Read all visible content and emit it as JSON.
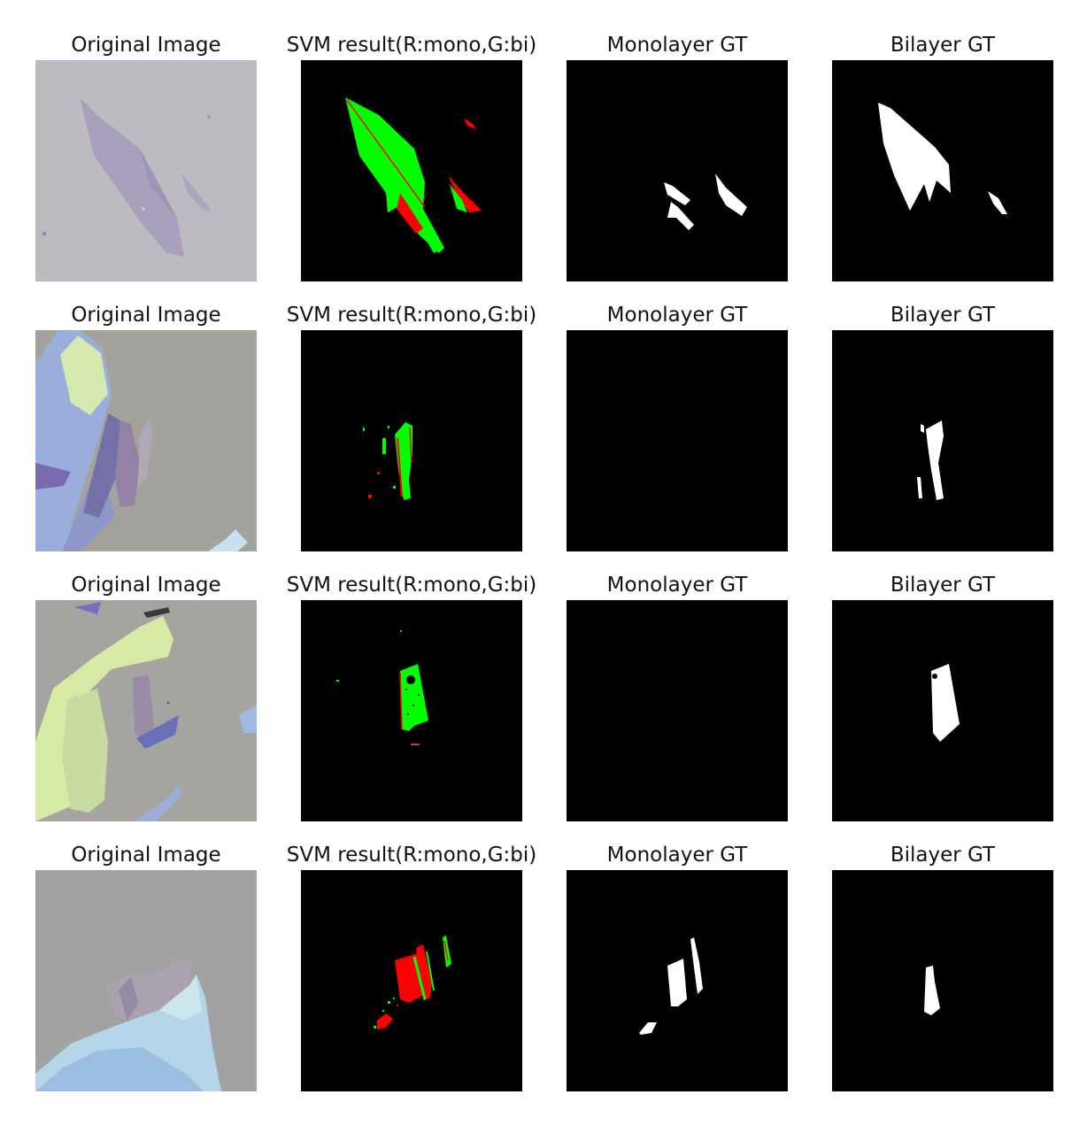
{
  "rows": [
    {
      "original_title": "Original Image",
      "svm_title": "SVM result(R:mono,G:bi)",
      "mono_title": "Monolayer GT",
      "bi_title": "Bilayer GT"
    },
    {
      "original_title": "Original Image",
      "svm_title": "SVM result(R:mono,G:bi)",
      "mono_title": "Monolayer GT",
      "bi_title": "Bilayer GT"
    },
    {
      "original_title": "Original Image",
      "svm_title": "SVM result(R:mono,G:bi)",
      "mono_title": "Monolayer GT",
      "bi_title": "Bilayer GT"
    },
    {
      "original_title": "Original Image",
      "svm_title": "SVM result(R:mono,G:bi)",
      "mono_title": "Monolayer GT",
      "bi_title": "Bilayer GT"
    }
  ],
  "colors": {
    "mono": "#ff0000",
    "bi": "#00ff00",
    "mask": "#ffffff",
    "background": "#000000"
  }
}
